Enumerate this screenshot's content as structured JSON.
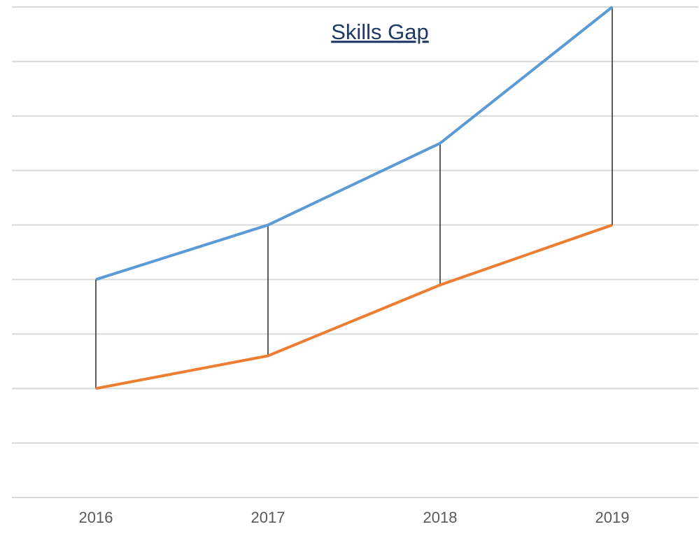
{
  "chart_data": {
    "type": "line",
    "title": "Skills Gap",
    "categories": [
      "2016",
      "2017",
      "2018",
      "2019"
    ],
    "series": [
      {
        "color": "#5b9bd5",
        "values": [
          4,
          5,
          6.5,
          9
        ]
      },
      {
        "color": "#ed7d31",
        "values": [
          2,
          2.6,
          3.9,
          5
        ]
      }
    ],
    "ylim": [
      0,
      9
    ],
    "yticks": [
      0,
      1,
      2,
      3,
      4,
      5,
      6,
      7,
      8,
      9
    ],
    "grid": true,
    "high_low_lines": true
  }
}
